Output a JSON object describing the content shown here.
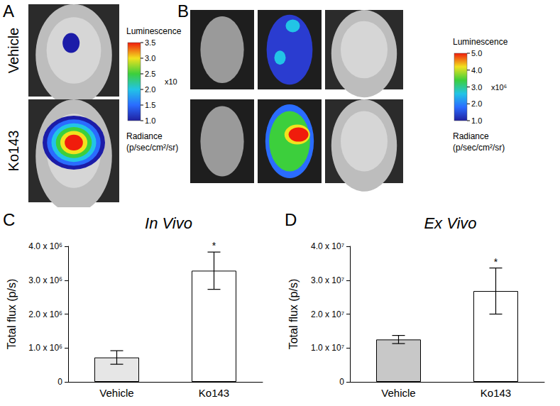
{
  "image_panels": [
    {
      "label": "A",
      "rows": [
        "Vehicle",
        "Ko143"
      ],
      "colorbar": {
        "title": "Luminescence",
        "multiplier": "x10",
        "unit_lines": [
          "Radiance",
          "(p/sec/cm²/sr)"
        ],
        "range": [
          1.0,
          3.5
        ],
        "ticks": [
          {
            "value": 1,
            "label": "1.0"
          },
          {
            "value": 1.5,
            "label": "1.5"
          },
          {
            "value": 2,
            "label": "2.0"
          },
          {
            "value": 2.5,
            "label": "2.5"
          },
          {
            "value": 3,
            "label": "3.0"
          },
          {
            "value": 3.5,
            "label": "3.5"
          }
        ]
      }
    },
    {
      "label": "B",
      "colorbar": {
        "title": "Luminescence",
        "multiplier": "x10⁶",
        "unit_lines": [
          "Radiance",
          "(p/sec/cm²/sr)"
        ],
        "range": [
          1.0,
          5.0
        ],
        "ticks": [
          {
            "value": 1,
            "label": "1.0"
          },
          {
            "value": 2,
            "label": "2.0"
          },
          {
            "value": 3,
            "label": "3.0"
          },
          {
            "value": 4,
            "label": "4.0"
          },
          {
            "value": 5,
            "label": "5.0"
          }
        ]
      }
    }
  ],
  "chart_data": [
    {
      "type": "bar",
      "title": "In Vivo",
      "annotations": [
        {
          "text": "C"
        },
        {
          "text": "*",
          "category": "Ko143"
        }
      ],
      "categories": [
        "Vehicle",
        "Ko143"
      ],
      "values": [
        720000,
        3280000
      ],
      "error": [
        200000,
        550000
      ],
      "colors": [
        "#e6e6e6",
        "#ffffff"
      ],
      "ylabel": "Total flux (p/s)",
      "ylim": [
        0,
        4000000
      ],
      "yticks": [
        0,
        {
          "value": 1000000,
          "label": "1.0 x 10⁶"
        },
        {
          "value": 2000000,
          "label": "2.0 x 10⁶"
        },
        {
          "value": 3000000,
          "label": "3.0 x 10⁶"
        },
        {
          "value": 4000000,
          "label": "4.0 x 10⁶"
        }
      ],
      "grid": false
    },
    {
      "type": "bar",
      "title": "Ex Vivo",
      "annotations": [
        {
          "text": "D"
        },
        {
          "text": "*",
          "category": "Ko143"
        }
      ],
      "categories": [
        "Vehicle",
        "Ko143"
      ],
      "values": [
        12500000,
        26800000
      ],
      "error": [
        1200000,
        6800000
      ],
      "colors": [
        "#c8c8c8",
        "#ffffff"
      ],
      "ylabel": "Total flux (p/s)",
      "ylim": [
        0,
        40000000
      ],
      "yticks": [
        0,
        {
          "value": 10000000,
          "label": "1.0 x 10⁷"
        },
        {
          "value": 20000000,
          "label": "2.0 x 10⁷"
        },
        {
          "value": 30000000,
          "label": "3.0 x 10⁷"
        },
        {
          "value": 40000000,
          "label": "4.0 x 10⁷"
        }
      ],
      "grid": false
    }
  ]
}
